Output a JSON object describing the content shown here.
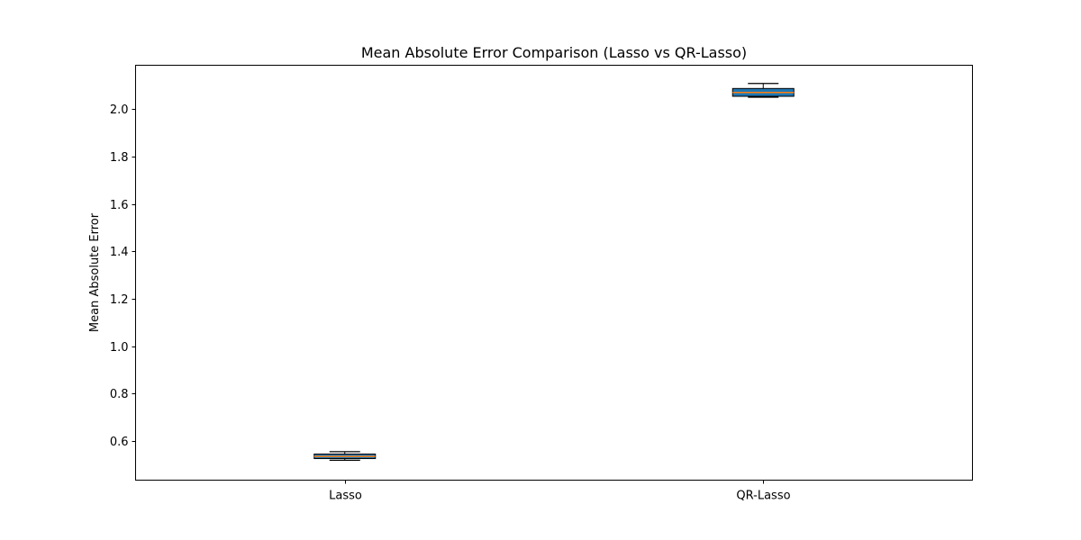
{
  "chart_data": {
    "type": "box",
    "title": "Mean Absolute Error Comparison (Lasso vs QR-Lasso)",
    "xlabel": "",
    "ylabel": "Mean Absolute Error",
    "categories": [
      "Lasso",
      "QR-Lasso"
    ],
    "boxes": [
      {
        "category": "Lasso",
        "whisker_low": 0.519,
        "q1": 0.526,
        "median": 0.535,
        "q3": 0.545,
        "whisker_high": 0.555
      },
      {
        "category": "QR-Lasso",
        "whisker_low": 2.05,
        "q1": 2.054,
        "median": 2.07,
        "q3": 2.087,
        "whisker_high": 2.108
      }
    ],
    "ylim": [
      0.435,
      2.185
    ],
    "yticks": [
      0.6,
      0.8,
      1.0,
      1.2,
      1.4,
      1.6,
      1.8,
      2.0
    ],
    "ytick_labels": [
      "0.6",
      "0.8",
      "1.0",
      "1.2",
      "1.4",
      "1.6",
      "1.8",
      "2.0"
    ],
    "grid": false,
    "colors": {
      "box_fill": "#1f77b4",
      "median": "#ff7f0e",
      "outline": "#000000"
    }
  }
}
